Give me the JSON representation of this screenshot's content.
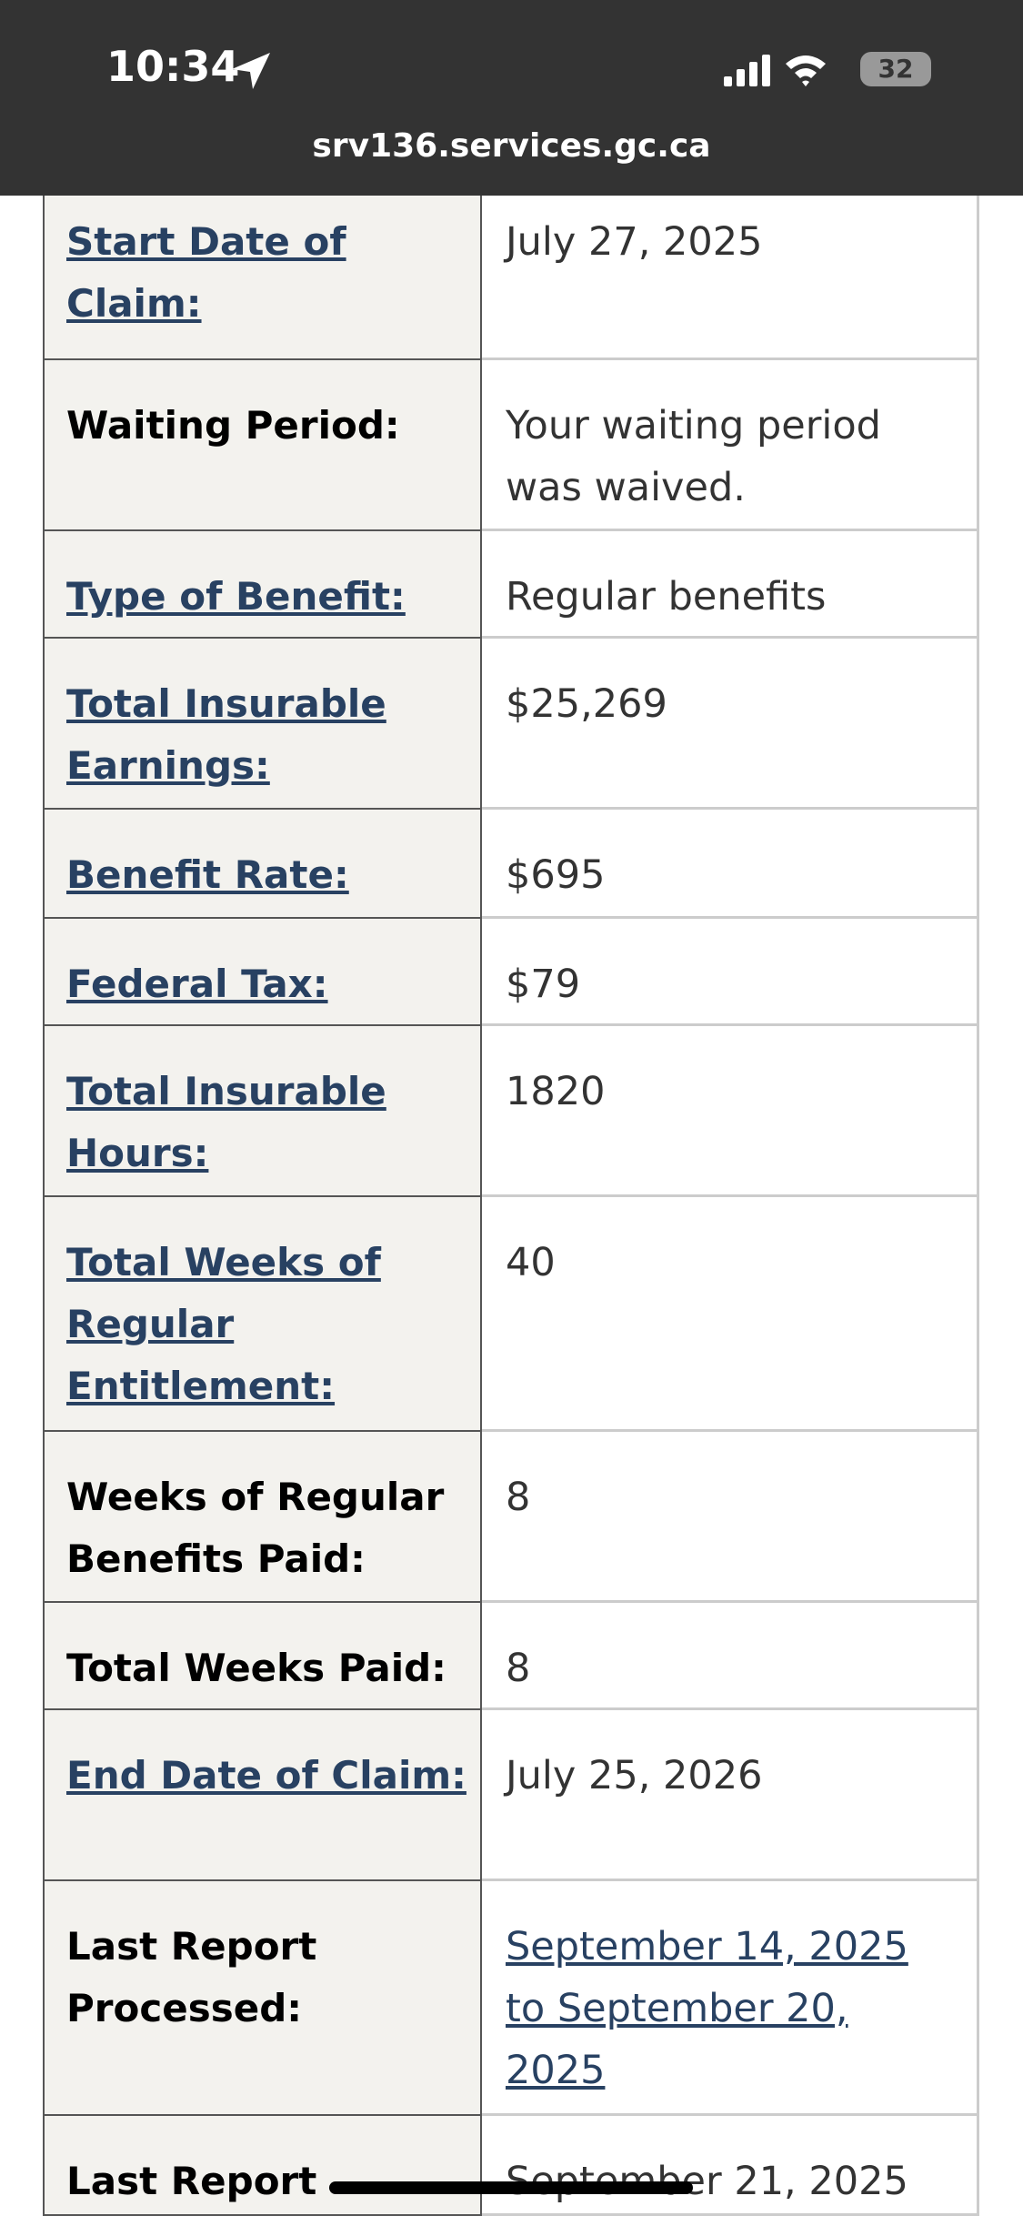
{
  "status_bar": {
    "time": "10:34",
    "battery": "32",
    "url": "srv136.services.gc.ca"
  },
  "table": {
    "rows": [
      {
        "label": "Start Date of Claim:",
        "value": "July 27, 2025",
        "label_link": true,
        "value_link": false
      },
      {
        "label": "Waiting Period:",
        "value": "Your waiting period was waived.",
        "label_link": false,
        "value_link": false
      },
      {
        "label": "Type of Benefit:",
        "value": "Regular benefits",
        "label_link": true,
        "value_link": false
      },
      {
        "label": "Total Insurable Earnings:",
        "value": "$25,269",
        "label_link": true,
        "value_link": false
      },
      {
        "label": "Benefit Rate:",
        "value": "$695",
        "label_link": true,
        "value_link": false
      },
      {
        "label": "Federal Tax:",
        "value": "$79",
        "label_link": true,
        "value_link": false
      },
      {
        "label": "Total Insurable Hours:",
        "value": "1820",
        "label_link": true,
        "value_link": false
      },
      {
        "label": "Total Weeks of Regular Entitlement:",
        "value": "40",
        "label_link": true,
        "value_link": false
      },
      {
        "label": "Weeks of Regular Benefits Paid:",
        "value": "8",
        "label_link": false,
        "value_link": false
      },
      {
        "label": "Total Weeks Paid:",
        "value": "8",
        "label_link": false,
        "value_link": false
      },
      {
        "label": "End Date of Claim:",
        "value": "July 25, 2026",
        "label_link": true,
        "value_link": false
      },
      {
        "label": "Last Report Processed:",
        "value": "September 14, 2025 to September 20, 2025",
        "label_link": false,
        "value_link": true
      },
      {
        "label": "Last Report",
        "value": "September 21, 2025",
        "label_link": false,
        "value_link": false
      }
    ]
  }
}
